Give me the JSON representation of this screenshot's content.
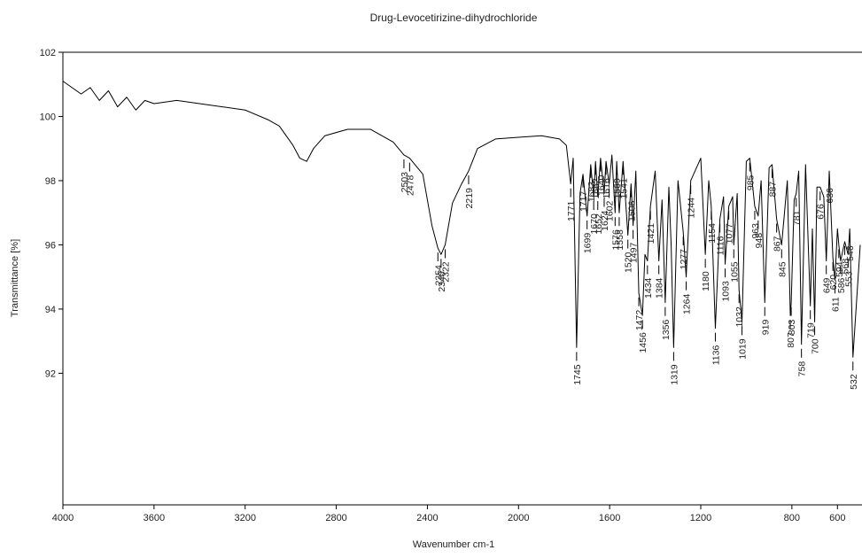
{
  "chart_data": {
    "type": "line",
    "title": "Drug-Levocetirizine-dihydrochloride",
    "x_label": "Wavenumber cm-1",
    "y_label": "Transmittance [%]",
    "xlim": [
      4000,
      500
    ],
    "ylim": [
      87.9,
      102
    ],
    "xticks": [
      4000,
      3600,
      3200,
      2800,
      2400,
      2000,
      1600,
      1200,
      800,
      600
    ],
    "yticks": [
      92,
      94,
      96,
      98,
      100,
      102
    ],
    "series": [
      {
        "name": "Drug-Levocetirizine-dihydrochloride",
        "color": "#000000",
        "x": [
          4000,
          3960,
          3920,
          3880,
          3840,
          3800,
          3760,
          3720,
          3680,
          3640,
          3600,
          3500,
          3400,
          3300,
          3200,
          3100,
          3050,
          2990,
          2960,
          2930,
          2900,
          2850,
          2750,
          2650,
          2550,
          2503,
          2478,
          2420,
          2380,
          2354,
          2340,
          2322,
          2290,
          2250,
          2219,
          2180,
          2100,
          2000,
          1900,
          1820,
          1790,
          1771,
          1760,
          1745,
          1730,
          1717,
          1699,
          1683,
          1670,
          1662,
          1652,
          1640,
          1624,
          1616,
          1602,
          1590,
          1576,
          1569,
          1558,
          1541,
          1520,
          1506,
          1497,
          1485,
          1472,
          1456,
          1445,
          1434,
          1421,
          1400,
          1384,
          1370,
          1356,
          1340,
          1330,
          1319,
          1300,
          1277,
          1264,
          1244,
          1200,
          1180,
          1165,
          1154,
          1136,
          1116,
          1100,
          1093,
          1077,
          1060,
          1055,
          1040,
          1032,
          1019,
          1000,
          985,
          963,
          948,
          935,
          919,
          900,
          887,
          867,
          845,
          820,
          807,
          803,
          790,
          781,
          770,
          758,
          740,
          719,
          710,
          700,
          690,
          676,
          660,
          649,
          636,
          620,
          611,
          600,
          594,
          586,
          568,
          553,
          546,
          532,
          500
        ],
        "values": [
          101.1,
          100.9,
          100.7,
          100.9,
          100.5,
          100.8,
          100.3,
          100.6,
          100.2,
          100.5,
          100.4,
          100.5,
          100.4,
          100.3,
          100.2,
          99.9,
          99.7,
          99.1,
          98.7,
          98.6,
          99.0,
          99.4,
          99.6,
          99.6,
          99.2,
          98.8,
          98.7,
          98.2,
          96.6,
          95.9,
          95.7,
          96.0,
          97.3,
          97.9,
          98.3,
          99.0,
          99.3,
          99.35,
          99.4,
          99.3,
          99.1,
          97.9,
          98.7,
          92.8,
          97.6,
          98.2,
          96.9,
          98.5,
          97.5,
          98.6,
          97.5,
          98.7,
          97.6,
          98.6,
          97.9,
          98.8,
          97.0,
          98.6,
          97.0,
          98.6,
          96.3,
          97.9,
          96.6,
          98.3,
          94.5,
          93.8,
          95.7,
          95.5,
          97.2,
          98.3,
          95.5,
          97.4,
          94.2,
          97.8,
          96.0,
          92.8,
          98.0,
          96.4,
          95.0,
          98.0,
          98.7,
          95.7,
          98.0,
          97.2,
          93.4,
          96.8,
          97.5,
          95.4,
          97.2,
          97.5,
          96.0,
          97.6,
          94.6,
          93.6,
          98.6,
          98.7,
          97.2,
          96.9,
          98.0,
          94.2,
          98.4,
          98.5,
          96.8,
          96.0,
          98.0,
          93.8,
          94.2,
          97.4,
          97.6,
          98.3,
          92.9,
          98.5,
          94.1,
          96.5,
          93.6,
          97.8,
          97.8,
          97.5,
          95.5,
          98.3,
          95.6,
          94.9,
          96.5,
          96.0,
          95.5,
          96.1,
          95.7,
          96.5,
          92.5,
          96.0
        ]
      }
    ],
    "peaks": [
      2503,
      2478,
      2354,
      2340,
      2322,
      2219,
      1771,
      1745,
      1717,
      1699,
      1683,
      1670,
      1662,
      1652,
      1640,
      1624,
      1616,
      1602,
      1576,
      1569,
      1558,
      1541,
      1520,
      1506,
      1497,
      1472,
      1456,
      1434,
      1421,
      1384,
      1356,
      1319,
      1277,
      1264,
      1244,
      1180,
      1154,
      1136,
      1116,
      1093,
      1077,
      1055,
      1032,
      1019,
      985,
      963,
      948,
      919,
      887,
      867,
      845,
      807,
      803,
      781,
      758,
      719,
      700,
      676,
      649,
      636,
      620,
      611,
      594,
      586,
      568,
      553,
      546,
      532
    ]
  }
}
